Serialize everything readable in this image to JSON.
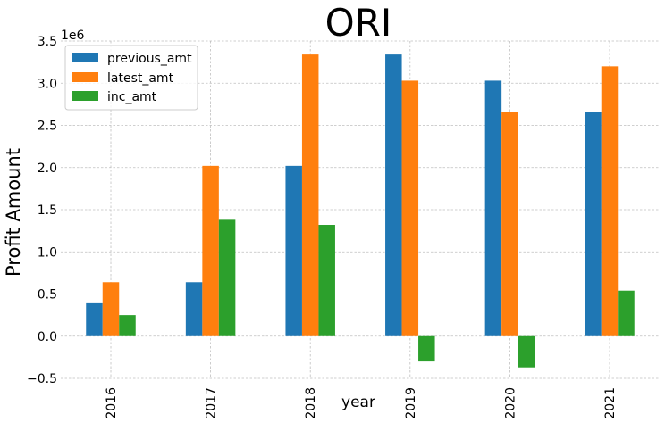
{
  "chart_data": {
    "type": "bar",
    "title": "ORI",
    "xlabel": "year",
    "ylabel": "Profit Amount",
    "y_offset_label": "1e6",
    "categories": [
      "2016",
      "2017",
      "2018",
      "2019",
      "2020",
      "2021"
    ],
    "series": [
      {
        "name": "previous_amt",
        "color": "#1f77b4",
        "values": [
          390000,
          640000,
          2020000,
          3340000,
          3030000,
          2660000
        ]
      },
      {
        "name": "latest_amt",
        "color": "#ff7f0e",
        "values": [
          640000,
          2020000,
          3340000,
          3030000,
          2660000,
          3200000
        ]
      },
      {
        "name": "inc_amt",
        "color": "#2ca02c",
        "values": [
          250000,
          1380000,
          1320000,
          -300000,
          -370000,
          540000
        ]
      }
    ],
    "ylim": [
      -500000,
      3500000
    ],
    "yticks": [
      -500000,
      0,
      500000,
      1000000,
      1500000,
      2000000,
      2500000,
      3000000,
      3500000
    ],
    "ytick_labels": [
      "−0.5",
      "0.0",
      "0.5",
      "1.0",
      "1.5",
      "2.0",
      "2.5",
      "3.0",
      "3.5"
    ],
    "grid": true,
    "legend_position": "top-left"
  }
}
